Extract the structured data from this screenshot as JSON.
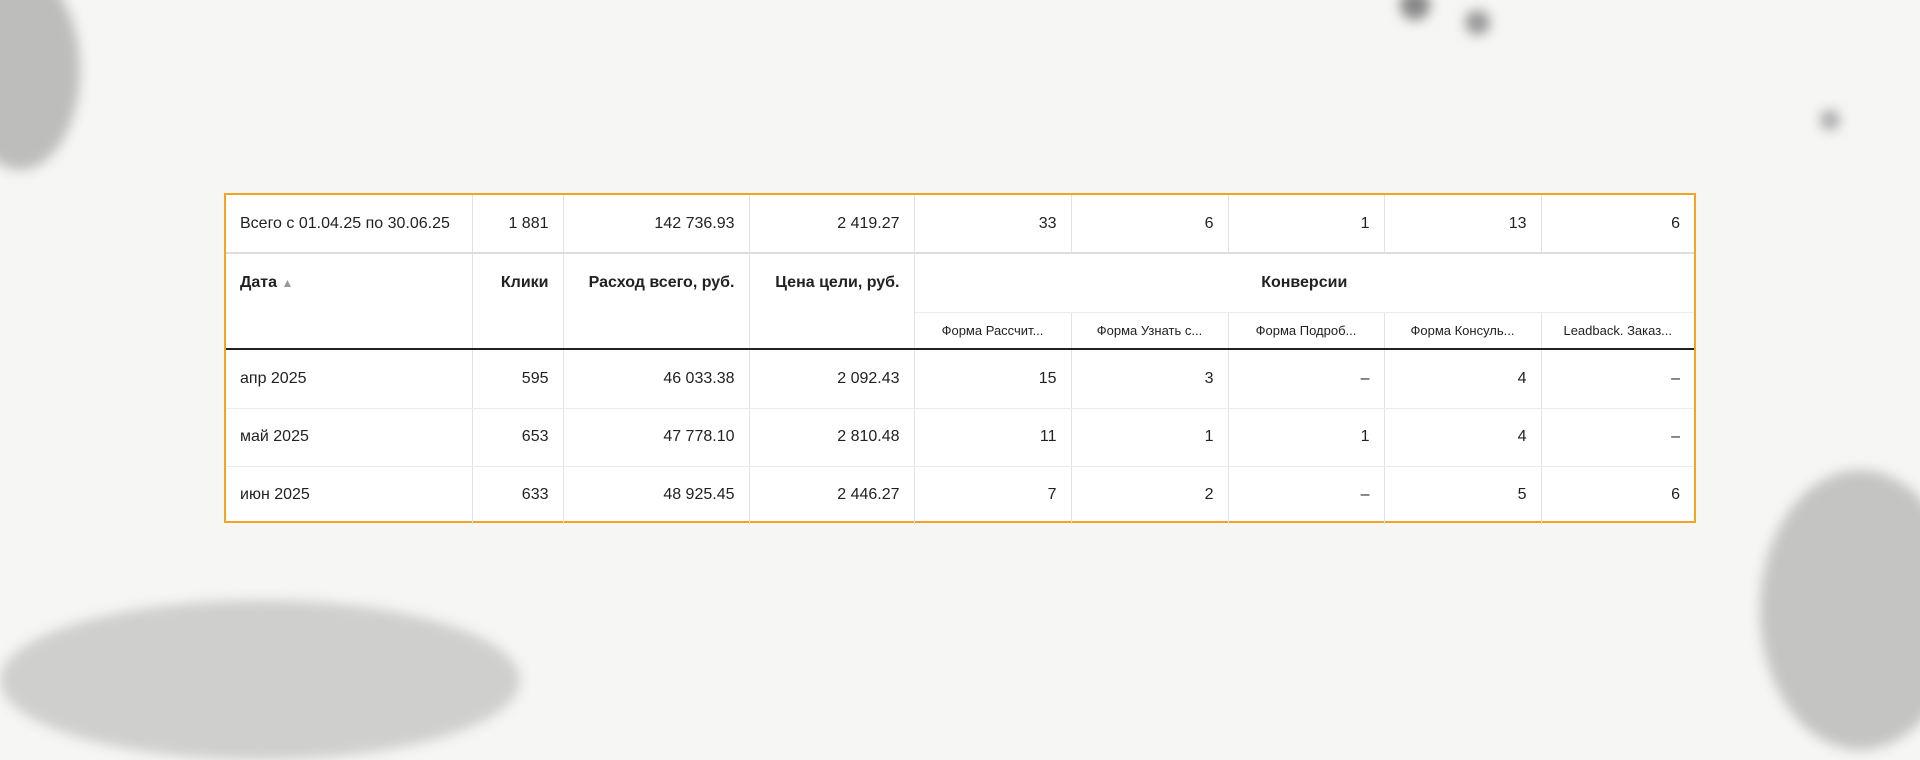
{
  "total": {
    "label": "Всего с 01.04.25 по 30.06.25",
    "clicks": "1 881",
    "spend": "142 736.93",
    "goal_price": "2 419.27",
    "conversions": [
      "33",
      "6",
      "1",
      "13",
      "6"
    ]
  },
  "headers": {
    "date": "Дата",
    "sort_icon": "▲",
    "clicks": "Клики",
    "spend": "Расход всего, руб.",
    "goal_price": "Цена цели, руб.",
    "conversions": "Конверсии",
    "conversion_cols": [
      "Форма Рассчит...",
      "Форма Узнать с...",
      "Форма Подроб...",
      "Форма Консуль...",
      "Leadback. Заказ..."
    ]
  },
  "rows": [
    {
      "date": "апр 2025",
      "clicks": "595",
      "spend": "46 033.38",
      "goal_price": "2 092.43",
      "conversions": [
        "15",
        "3",
        "–",
        "4",
        "–"
      ]
    },
    {
      "date": "май 2025",
      "clicks": "653",
      "spend": "47 778.10",
      "goal_price": "2 810.48",
      "conversions": [
        "11",
        "1",
        "1",
        "4",
        "–"
      ]
    },
    {
      "date": "июн 2025",
      "clicks": "633",
      "spend": "48 925.45",
      "goal_price": "2 446.27",
      "conversions": [
        "7",
        "2",
        "–",
        "5",
        "6"
      ]
    }
  ],
  "colors": {
    "border_accent": "#f4a41f"
  }
}
